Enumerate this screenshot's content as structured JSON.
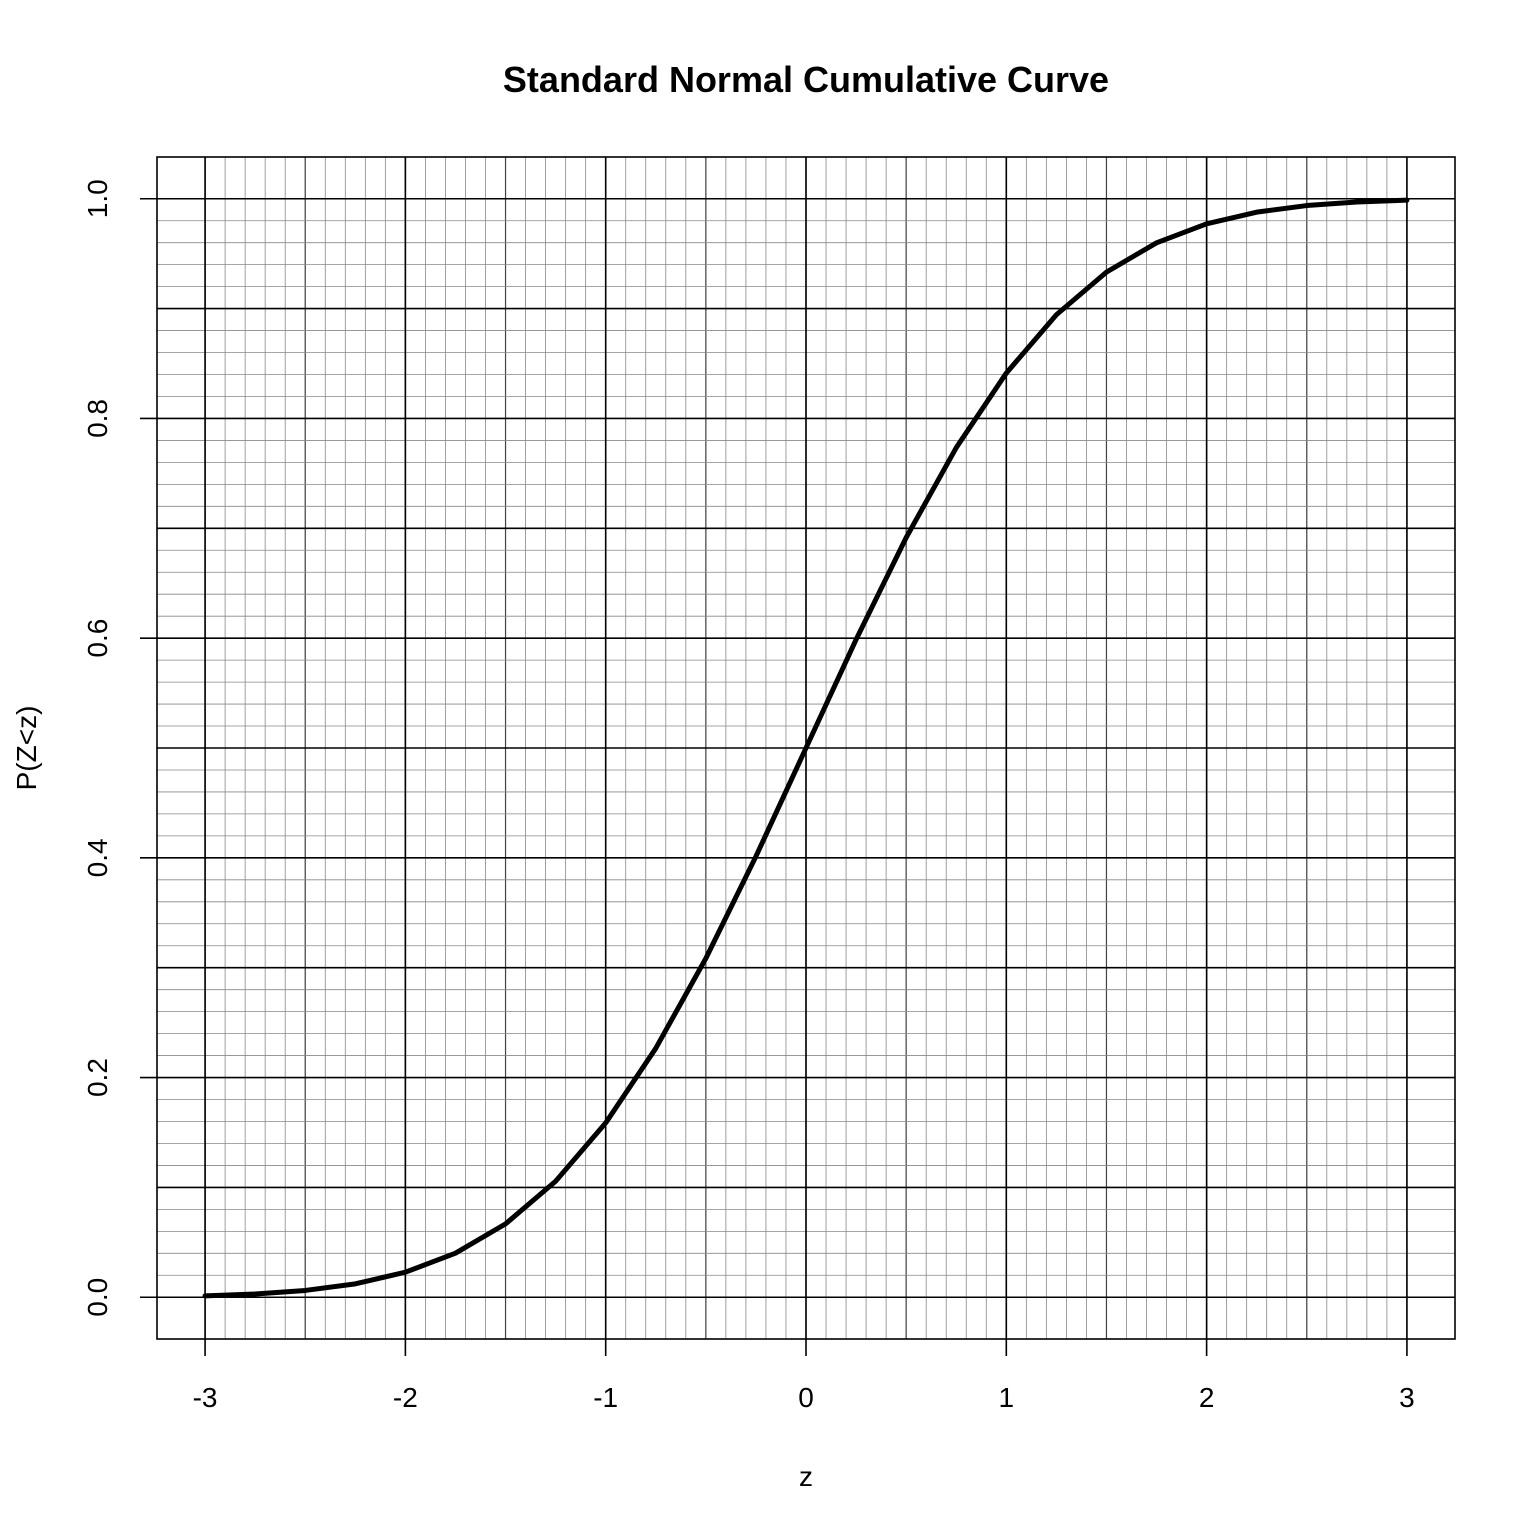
{
  "chart_data": {
    "type": "line",
    "title": "Standard Normal Cumulative Curve",
    "xlabel": "z",
    "ylabel": "P(Z<z)",
    "xlim": [
      -3.24,
      3.24
    ],
    "ylim": [
      -0.038,
      1.038
    ],
    "x_ticks": [
      -3,
      -2,
      -1,
      0,
      1,
      2,
      3
    ],
    "x_tick_labels": [
      "-3",
      "-2",
      "-1",
      "0",
      "1",
      "2",
      "3"
    ],
    "y_ticks": [
      0.0,
      0.2,
      0.4,
      0.6,
      0.8,
      1.0
    ],
    "y_tick_labels": [
      "0.0",
      "0.2",
      "0.4",
      "0.6",
      "0.8",
      "1.0"
    ],
    "grid": {
      "major_x_step": 1,
      "medium_x_step": 0.5,
      "minor_x_step": 0.1,
      "major_y_step": 0.1,
      "minor_y_step": 0.02
    },
    "line_color": "#000000",
    "series": [
      {
        "x": [
          -3.0,
          -2.75,
          -2.5,
          -2.25,
          -2.0,
          -1.75,
          -1.5,
          -1.25,
          -1.0,
          -0.75,
          -0.5,
          -0.25,
          0.0,
          0.25,
          0.5,
          0.75,
          1.0,
          1.25,
          1.5,
          1.75,
          2.0,
          2.25,
          2.5,
          2.75,
          3.0
        ],
        "y": [
          0.0013,
          0.003,
          0.0062,
          0.0122,
          0.0228,
          0.0401,
          0.0668,
          0.1056,
          0.1587,
          0.2266,
          0.3085,
          0.4013,
          0.5,
          0.5987,
          0.6915,
          0.7734,
          0.8413,
          0.8944,
          0.9332,
          0.9599,
          0.9772,
          0.9878,
          0.9938,
          0.997,
          0.9987
        ]
      }
    ]
  }
}
